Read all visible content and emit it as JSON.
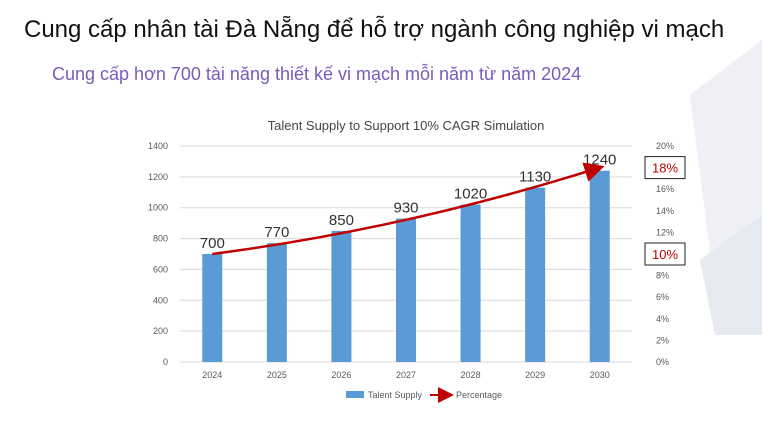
{
  "slide": {
    "title": "Cung cấp nhân tài Đà Nẵng để hỗ trợ ngành công nghiệp vi mạch",
    "subtitle": "Cung cấp hơn 700 tài năng thiết kế vi mạch mỗi năm từ năm 2024",
    "accent_color": "#7a5bb8",
    "decor_color": "#eef0f5"
  },
  "chart_data": {
    "type": "bar",
    "title": "Talent Supply to Support 10% CAGR Simulation",
    "categories": [
      "2024",
      "2025",
      "2026",
      "2027",
      "2028",
      "2029",
      "2030"
    ],
    "series": [
      {
        "name": "Talent Supply",
        "type": "bar",
        "values": [
          700,
          770,
          850,
          930,
          1020,
          1130,
          1240
        ],
        "color": "#5b9bd5"
      },
      {
        "name": "Percentage",
        "type": "line",
        "axis": "secondary",
        "values": [
          10,
          null,
          null,
          null,
          null,
          null,
          18
        ],
        "color": "#c00000"
      }
    ],
    "data_labels": [
      "700",
      "770",
      "850",
      "930",
      "1020",
      "1130",
      "1240"
    ],
    "y_ticks": [
      "0",
      "200",
      "400",
      "600",
      "800",
      "1000",
      "1200",
      "1400"
    ],
    "y2_ticks": [
      "0%",
      "2%",
      "4%",
      "6%",
      "8%",
      "10%",
      "12%",
      "14%",
      "16%",
      "18%",
      "20%"
    ],
    "ylim": [
      0,
      1400
    ],
    "y2lim": [
      0,
      20
    ],
    "callouts": [
      {
        "text": "18%",
        "value": 18
      },
      {
        "text": "10%",
        "value": 10
      }
    ],
    "legend_position": "bottom",
    "grid": true
  }
}
